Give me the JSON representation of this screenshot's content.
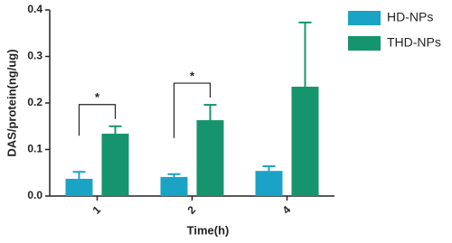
{
  "chart_data": {
    "type": "bar",
    "x_label": "Time(h)",
    "y_label": "DAS/protein(ng/ug)",
    "categories": [
      "1",
      "2",
      "4"
    ],
    "series": [
      {
        "name": "HD-NPs",
        "color": "#1ba3c6",
        "values": [
          0.037,
          0.041,
          0.054
        ],
        "errors": [
          0.015,
          0.006,
          0.01
        ]
      },
      {
        "name": "THD-NPs",
        "color": "#16946d",
        "values": [
          0.134,
          0.163,
          0.235
        ],
        "errors": [
          0.016,
          0.033,
          0.138
        ]
      }
    ],
    "annotations": [
      "*",
      "*"
    ],
    "ylim": [
      0,
      0.4
    ],
    "yticks": [
      {
        "value": 0,
        "label": "0.0"
      },
      0.1,
      0.2,
      0.3,
      0.4
    ],
    "legend": "top-right"
  }
}
